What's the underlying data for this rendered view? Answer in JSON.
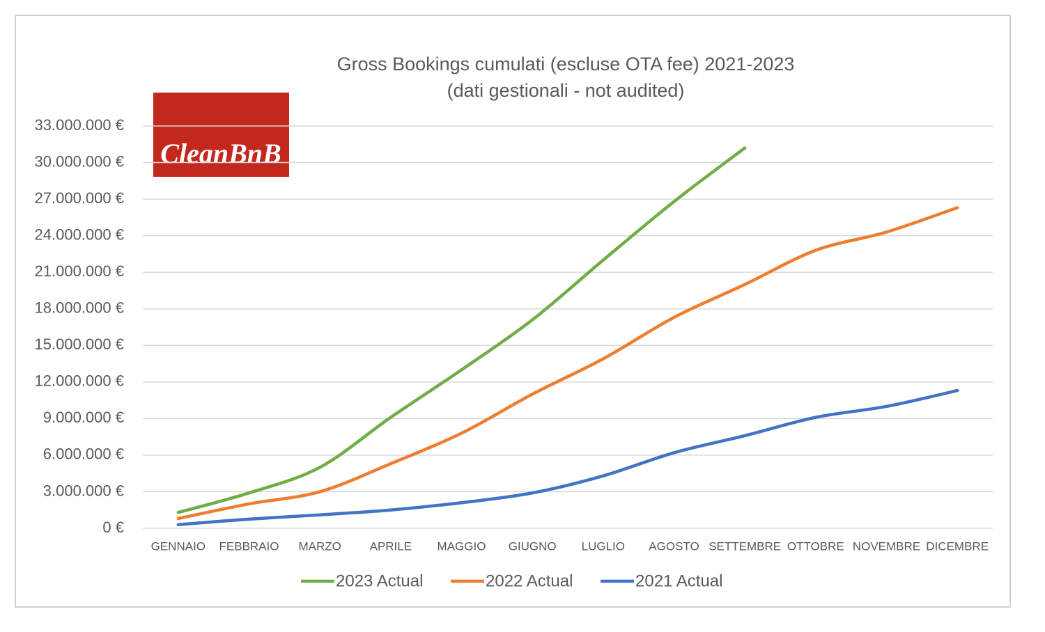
{
  "logo": "CleanBnB",
  "chart_data": {
    "type": "line",
    "title": "Gross Bookings cumulati (escluse OTA fee) 2021-2023",
    "subtitle": "(dati gestionali - not audited)",
    "categories": [
      "GENNAIO",
      "FEBBRAIO",
      "MARZO",
      "APRILE",
      "MAGGIO",
      "GIUGNO",
      "LUGLIO",
      "AGOSTO",
      "SETTEMBRE",
      "OTTOBRE",
      "NOVEMBRE",
      "DICEMBRE"
    ],
    "series": [
      {
        "name": "2023 Actual",
        "color": "#70ad47",
        "values": [
          1300000,
          2900000,
          5000000,
          9100000,
          13000000,
          17100000,
          22000000,
          26800000,
          31200000,
          null,
          null,
          null
        ]
      },
      {
        "name": "2022 Actual",
        "color": "#ed7d31",
        "values": [
          800000,
          2000000,
          3000000,
          5300000,
          7800000,
          11000000,
          13900000,
          17300000,
          20000000,
          22800000,
          24300000,
          26300000
        ]
      },
      {
        "name": "2021 Actual",
        "color": "#4472c4",
        "values": [
          300000,
          750000,
          1100000,
          1500000,
          2100000,
          2900000,
          4300000,
          6200000,
          7600000,
          9100000,
          10000000,
          11300000
        ]
      }
    ],
    "ylim": [
      0,
      33000000
    ],
    "yticks": [
      {
        "value": 0,
        "label": "0 €"
      },
      {
        "value": 3000000,
        "label": "3.000.000 €"
      },
      {
        "value": 6000000,
        "label": "6.000.000 €"
      },
      {
        "value": 9000000,
        "label": "9.000.000 €"
      },
      {
        "value": 12000000,
        "label": "12.000.000 €"
      },
      {
        "value": 15000000,
        "label": "15.000.000 €"
      },
      {
        "value": 18000000,
        "label": "18.000.000 €"
      },
      {
        "value": 21000000,
        "label": "21.000.000 €"
      },
      {
        "value": 24000000,
        "label": "24.000.000 €"
      },
      {
        "value": 27000000,
        "label": "27.000.000 €"
      },
      {
        "value": 30000000,
        "label": "30.000.000 €"
      },
      {
        "value": 33000000,
        "label": "33.000.000 €"
      }
    ],
    "grid": true,
    "legend": "bottom"
  }
}
